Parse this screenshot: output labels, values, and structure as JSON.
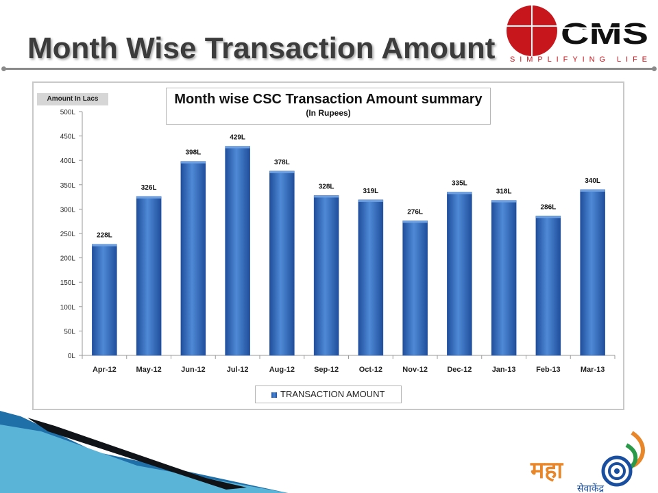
{
  "slide": {
    "title": "Month Wise Transaction Amount"
  },
  "logos": {
    "cms_text": "CMS",
    "cms_tagline": "SIMPLIFYING  LIFE",
    "maha_text": "महा",
    "maha_subtext": "सेवाकेंद्र"
  },
  "colors": {
    "bar": "#2e68c0",
    "bar_light": "#4f8ad6",
    "bar_dark": "#1f4e9c",
    "cms_red": "#c8161d",
    "title_text": "#3c3c3c",
    "deco_blue": "#1f6fa8",
    "deco_light": "#5ab4d8"
  },
  "chart_data": {
    "type": "bar",
    "title": "Month wise CSC Transaction Amount summary",
    "subtitle": "(In Rupees)",
    "ylabel": "Amount In Lacs",
    "xlabel": "",
    "categories": [
      "Apr-12",
      "May-12",
      "Jun-12",
      "Jul-12",
      "Aug-12",
      "Sep-12",
      "Oct-12",
      "Nov-12",
      "Dec-12",
      "Jan-13",
      "Feb-13",
      "Mar-13"
    ],
    "series": [
      {
        "name": "TRANSACTION AMOUNT",
        "values": [
          228,
          326,
          398,
          429,
          378,
          328,
          319,
          276,
          335,
          318,
          286,
          340
        ]
      }
    ],
    "data_labels": [
      "228L",
      "326L",
      "398L",
      "429L",
      "378L",
      "328L",
      "319L",
      "276L",
      "335L",
      "318L",
      "286L",
      "340L"
    ],
    "ylim": [
      0,
      500
    ],
    "yticks": [
      0,
      50,
      100,
      150,
      200,
      250,
      300,
      350,
      400,
      450,
      500
    ],
    "ytick_labels": [
      "0L",
      "50L",
      "100L",
      "150L",
      "200L",
      "250L",
      "300L",
      "350L",
      "400L",
      "450L",
      "500L"
    ],
    "grid": false,
    "legend_position": "bottom"
  }
}
